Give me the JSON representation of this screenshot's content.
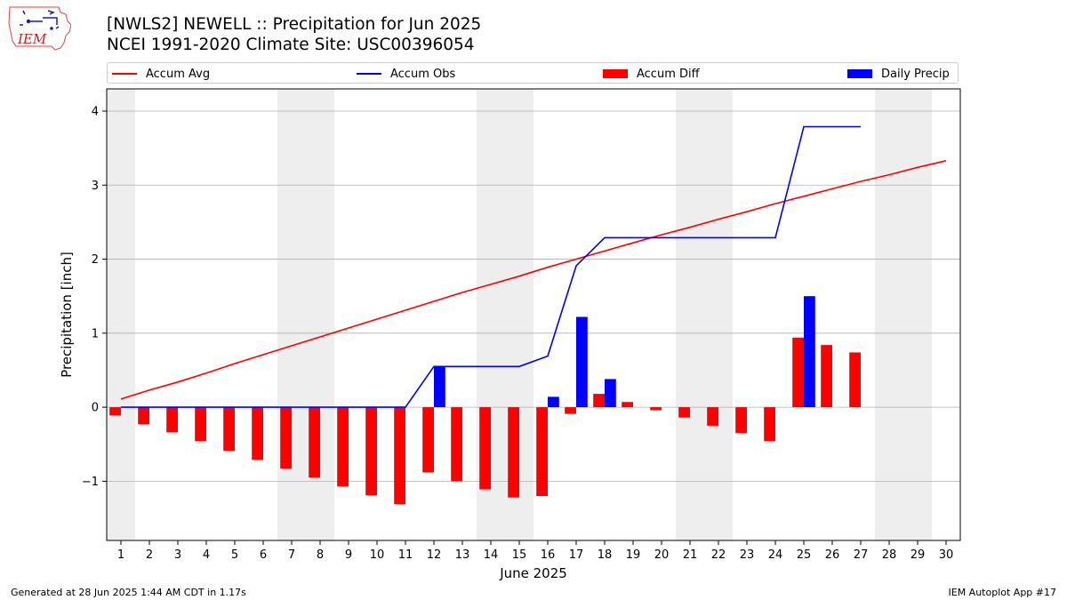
{
  "header": {
    "title_line1": "[NWLS2] NEWELL :: Precipitation for Jun 2025",
    "title_line2": "NCEI 1991-2020 Climate Site: USC00396054",
    "logo_text": "IEM"
  },
  "legend": {
    "items": [
      {
        "label": "Accum Avg",
        "kind": "line",
        "color": "#ff0000"
      },
      {
        "label": "Accum Obs",
        "kind": "line",
        "color": "#0000ff"
      },
      {
        "label": "Accum Diff",
        "kind": "bar",
        "color": "#ff0000"
      },
      {
        "label": "Daily Precip",
        "kind": "bar",
        "color": "#0000ff"
      }
    ]
  },
  "footer": {
    "left": "Generated at 28 Jun 2025 1:44 AM CDT in 1.17s",
    "right": "IEM Autoplot App #17"
  },
  "chart_data": {
    "type": "bar",
    "xlabel": "June 2025",
    "ylabel": "Precipitation [inch]",
    "x": [
      1,
      2,
      3,
      4,
      5,
      6,
      7,
      8,
      9,
      10,
      11,
      12,
      13,
      14,
      15,
      16,
      17,
      18,
      19,
      20,
      21,
      22,
      23,
      24,
      25,
      26,
      27,
      28,
      29,
      30
    ],
    "xlim": [
      0.5,
      30.5
    ],
    "ylim": [
      -1.8,
      4.3
    ],
    "yticks": [
      -1,
      0,
      1,
      2,
      3,
      4
    ],
    "ytick_labels": [
      "−1",
      "0",
      "1",
      "2",
      "3",
      "4"
    ],
    "grid": "horizontal",
    "weekend_shading_days": [
      1,
      7,
      8,
      14,
      15,
      21,
      22,
      28,
      29
    ],
    "weekend_shading_color": "#eeeeee",
    "series": [
      {
        "name": "Accum Avg",
        "kind": "line",
        "color": "#ff0000",
        "values": [
          0.11,
          0.23,
          0.34,
          0.46,
          0.59,
          0.71,
          0.83,
          0.95,
          1.07,
          1.19,
          1.31,
          1.43,
          1.55,
          1.66,
          1.77,
          1.89,
          2.0,
          2.11,
          2.22,
          2.33,
          2.43,
          2.54,
          2.64,
          2.75,
          2.85,
          2.95,
          3.05,
          3.14,
          3.24,
          3.33
        ]
      },
      {
        "name": "Accum Obs",
        "kind": "line",
        "color": "#0000ff",
        "values": [
          0,
          0,
          0,
          0,
          0,
          0,
          0,
          0,
          0,
          0,
          0,
          0.55,
          0.55,
          0.55,
          0.55,
          0.69,
          1.91,
          2.29,
          2.29,
          2.29,
          2.29,
          2.29,
          2.29,
          2.29,
          3.79,
          3.79,
          3.79,
          null,
          null,
          null
        ]
      },
      {
        "name": "Accum Diff",
        "kind": "bar",
        "color": "#ff0000",
        "values": [
          -0.11,
          -0.23,
          -0.34,
          -0.46,
          -0.59,
          -0.71,
          -0.83,
          -0.95,
          -1.07,
          -1.19,
          -1.31,
          -0.88,
          -1.0,
          -1.11,
          -1.22,
          -1.2,
          -0.09,
          0.18,
          0.07,
          -0.04,
          -0.14,
          -0.25,
          -0.35,
          -0.46,
          0.94,
          0.84,
          0.74,
          null,
          null,
          null
        ]
      },
      {
        "name": "Daily Precip",
        "kind": "bar",
        "color": "#0000ff",
        "values": [
          0,
          0,
          0,
          0,
          0,
          0,
          0,
          0,
          0,
          0,
          0,
          0.55,
          0,
          0,
          0,
          0.14,
          1.22,
          0.38,
          0,
          0,
          0,
          0,
          0,
          0,
          1.5,
          0,
          0,
          null,
          null,
          null
        ]
      }
    ]
  }
}
